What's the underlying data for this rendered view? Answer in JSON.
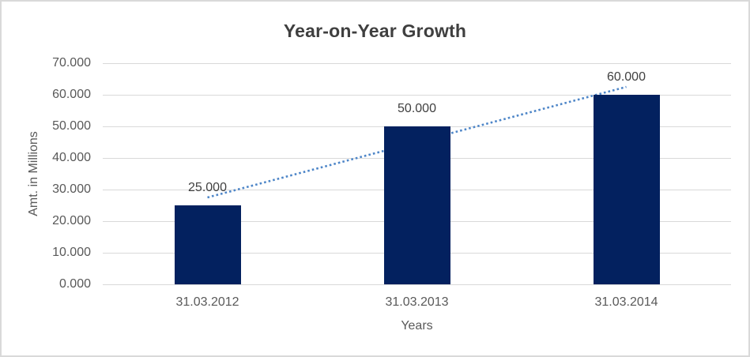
{
  "chart_data": {
    "type": "bar",
    "title": "Year-on-Year Growth",
    "categories": [
      "31.03.2012",
      "31.03.2013",
      "31.03.2014"
    ],
    "values": [
      25,
      50,
      60
    ],
    "data_labels": [
      "25.000",
      "50.000",
      "60.000"
    ],
    "xlabel": "Years",
    "ylabel": "Amt. in Millions",
    "ylim": [
      0,
      70
    ],
    "ytick_step": 10,
    "ytick_labels": [
      "0.000",
      "10.000",
      "20.000",
      "30.000",
      "40.000",
      "50.000",
      "60.000",
      "70.000"
    ],
    "grid": true,
    "legend": "none",
    "bar_color": "#03215f",
    "gridline_color": "#d9d9d9",
    "title_color": "#3f3f3f",
    "axis_text_color": "#595959",
    "data_label_color": "#404040",
    "trendline": {
      "type": "linear",
      "style": "dotted",
      "color": "#4e86c8"
    }
  }
}
